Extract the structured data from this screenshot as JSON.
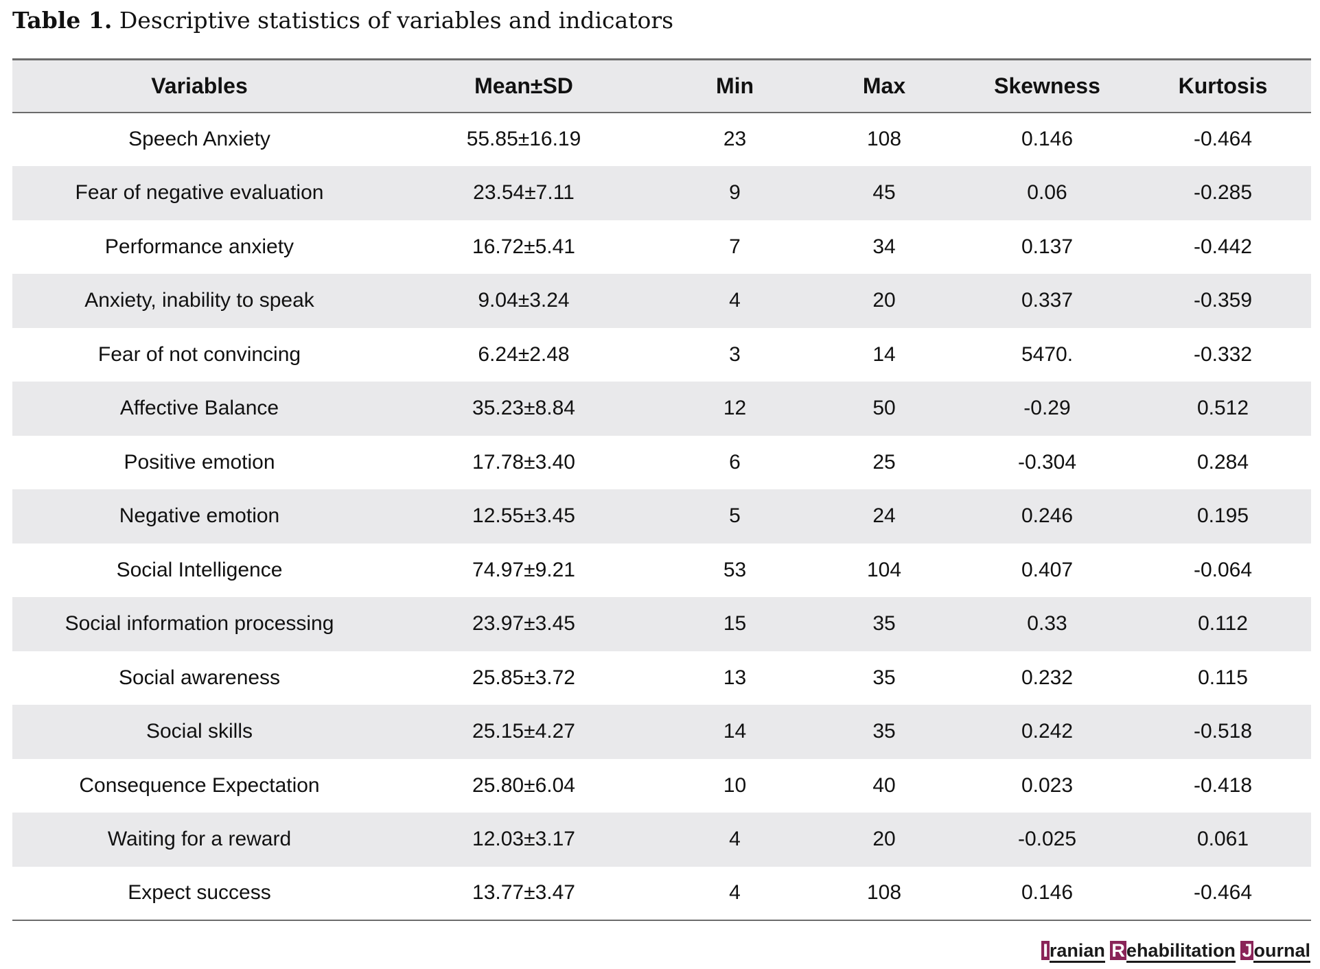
{
  "caption": {
    "label": "Table 1.",
    "text": "Descriptive statistics of variables and indicators"
  },
  "table": {
    "headers": [
      "Variables",
      "Mean±SD",
      "Min",
      "Max",
      "Skewness",
      "Kurtosis"
    ],
    "rows": [
      [
        "Speech Anxiety",
        "55.85±16.19",
        "23",
        "108",
        "0.146",
        "-0.464"
      ],
      [
        "Fear of negative evaluation",
        "23.54±7.11",
        "9",
        "45",
        "0.06",
        "-0.285"
      ],
      [
        "Performance anxiety",
        "16.72±5.41",
        "7",
        "34",
        "0.137",
        "-0.442"
      ],
      [
        "Anxiety, inability to speak",
        "9.04±3.24",
        "4",
        "20",
        "0.337",
        "-0.359"
      ],
      [
        "Fear of not convincing",
        "6.24±2.48",
        "3",
        "14",
        "5470.",
        "-0.332"
      ],
      [
        "Affective Balance",
        "35.23±8.84",
        "12",
        "50",
        "-0.29",
        "0.512"
      ],
      [
        "Positive emotion",
        "17.78±3.40",
        "6",
        "25",
        "-0.304",
        "0.284"
      ],
      [
        "Negative emotion",
        "12.55±3.45",
        "5",
        "24",
        "0.246",
        "0.195"
      ],
      [
        "Social Intelligence",
        "74.97±9.21",
        "53",
        "104",
        "0.407",
        "-0.064"
      ],
      [
        "Social information processing",
        "23.97±3.45",
        "15",
        "35",
        "0.33",
        "0.112"
      ],
      [
        "Social awareness",
        "25.85±3.72",
        "13",
        "35",
        "0.232",
        "0.115"
      ],
      [
        "Social skills",
        "25.15±4.27",
        "14",
        "35",
        "0.242",
        "-0.518"
      ],
      [
        "Consequence Expectation",
        "25.80±6.04",
        "10",
        "40",
        "0.023",
        "-0.418"
      ],
      [
        "Waiting for a reward",
        "12.03±3.17",
        "4",
        "20",
        "-0.025",
        "0.061"
      ],
      [
        "Expect success",
        "13.77±3.47",
        "4",
        "108",
        "0.146",
        "-0.464"
      ]
    ]
  },
  "journal": {
    "word1_initial": "I",
    "word1_rest": "ranian",
    "word2_initial": "R",
    "word2_rest": "ehabilitation",
    "word3_initial": "J",
    "word3_rest": "ournal",
    "accent_color": "#8a2458"
  }
}
